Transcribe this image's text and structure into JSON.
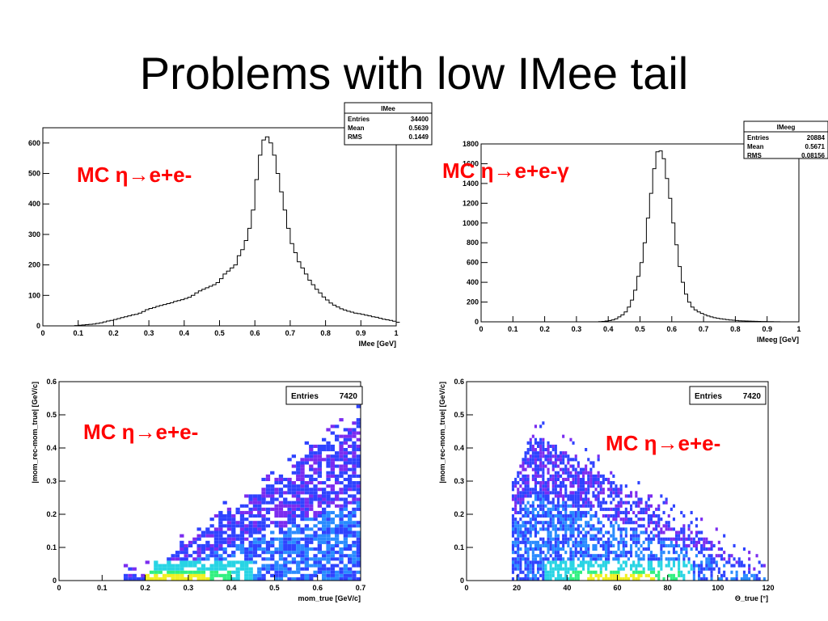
{
  "slide": {
    "title": "Problems with low IMee tail"
  },
  "colors": {
    "line": "#000000",
    "annotation": "#ff0000"
  },
  "chart_data": [
    {
      "id": "imee",
      "type": "histogram",
      "annotation": "MC η→e+e-",
      "xlabel": "IMee [GeV]",
      "ylabel": "",
      "xlim": [
        0,
        1
      ],
      "ylim": [
        0,
        650
      ],
      "xticks": [
        "0",
        "0.1",
        "0.2",
        "0.3",
        "0.4",
        "0.5",
        "0.6",
        "0.7",
        "0.8",
        "0.9",
        "1"
      ],
      "yticks": [
        "0",
        "100",
        "200",
        "300",
        "400",
        "500",
        "600"
      ],
      "stats": {
        "title": "IMee",
        "rows": [
          [
            "Entries",
            "34400"
          ],
          [
            "Mean",
            "0.5639"
          ],
          [
            "RMS",
            "0.1449"
          ]
        ]
      },
      "bin_width": 0.01,
      "values": [
        0,
        0,
        0,
        0,
        0,
        0,
        0,
        0,
        0,
        1,
        2,
        3,
        4,
        5,
        6,
        8,
        10,
        13,
        16,
        18,
        21,
        24,
        27,
        30,
        33,
        36,
        38,
        42,
        47,
        53,
        57,
        60,
        64,
        67,
        70,
        73,
        76,
        80,
        83,
        86,
        90,
        94,
        100,
        108,
        115,
        120,
        125,
        130,
        135,
        142,
        155,
        170,
        180,
        190,
        200,
        230,
        250,
        280,
        320,
        380,
        480,
        560,
        610,
        620,
        600,
        560,
        500,
        440,
        380,
        320,
        270,
        240,
        210,
        190,
        170,
        150,
        135,
        120,
        108,
        95,
        85,
        75,
        68,
        62,
        56,
        52,
        48,
        45,
        42,
        40,
        38,
        35,
        33,
        30,
        28,
        25,
        22,
        20,
        18,
        15,
        12
      ]
    },
    {
      "id": "imeeg",
      "type": "histogram",
      "annotation": "MC η→e+e-γ",
      "xlabel": "IMeeg [GeV]",
      "ylabel": "",
      "xlim": [
        0,
        1
      ],
      "ylim": [
        0,
        1800
      ],
      "xticks": [
        "0",
        "0.1",
        "0.2",
        "0.3",
        "0.4",
        "0.5",
        "0.6",
        "0.7",
        "0.8",
        "0.9",
        "1"
      ],
      "yticks": [
        "0",
        "200",
        "400",
        "600",
        "800",
        "1000",
        "1200",
        "1400",
        "1600",
        "1800"
      ],
      "stats": {
        "title": "IMeeg",
        "rows": [
          [
            "Entries",
            "20884"
          ],
          [
            "Mean",
            "0.5671"
          ],
          [
            "RMS",
            "0.08156"
          ]
        ]
      },
      "bin_width": 0.01,
      "values": [
        0,
        0,
        0,
        0,
        0,
        0,
        0,
        0,
        0,
        0,
        0,
        0,
        0,
        0,
        0,
        0,
        0,
        0,
        0,
        0,
        0,
        0,
        0,
        0,
        0,
        0,
        0,
        0,
        0,
        0,
        0,
        0,
        0,
        0,
        0,
        0,
        0,
        2,
        4,
        8,
        12,
        20,
        30,
        50,
        70,
        100,
        150,
        220,
        320,
        460,
        600,
        800,
        1050,
        1300,
        1550,
        1720,
        1730,
        1650,
        1450,
        1250,
        1000,
        780,
        560,
        400,
        280,
        200,
        150,
        120,
        100,
        85,
        72,
        60,
        50,
        42,
        36,
        30,
        26,
        22,
        19,
        16,
        13,
        11,
        9,
        8,
        7,
        6,
        5,
        4,
        3,
        3,
        2,
        2,
        1,
        1,
        0,
        0,
        0,
        0,
        0,
        0
      ]
    },
    {
      "id": "res-vs-mom",
      "type": "heatmap",
      "annotation": "MC η→e+e-",
      "xlabel": "mom_true [GeV/c]",
      "ylabel": "|mom_rec-mom_true| [GeV/c]",
      "xlim": [
        0,
        0.7
      ],
      "ylim": [
        0,
        0.6
      ],
      "xticks": [
        "0",
        "0.1",
        "0.2",
        "0.3",
        "0.4",
        "0.5",
        "0.6",
        "0.7"
      ],
      "yticks": [
        "0",
        "0.1",
        "0.2",
        "0.3",
        "0.4",
        "0.5",
        "0.6"
      ],
      "stats": {
        "title": "",
        "rows": [
          [
            "Entries",
            "7420"
          ]
        ]
      },
      "palette": [
        "#7b2cf0",
        "#2f43ff",
        "#2a8bff",
        "#28d4e4",
        "#30f080",
        "#f0f020"
      ]
    },
    {
      "id": "res-vs-theta",
      "type": "heatmap",
      "annotation": "MC η→e+e-",
      "xlabel": "Θ_true [°]",
      "ylabel": "|mom_rec-mom_true| [GeV/c]",
      "xlim": [
        0,
        120
      ],
      "ylim": [
        0,
        0.6
      ],
      "xticks": [
        "0",
        "20",
        "40",
        "60",
        "80",
        "100",
        "120"
      ],
      "yticks": [
        "0",
        "0.1",
        "0.2",
        "0.3",
        "0.4",
        "0.5",
        "0.6"
      ],
      "stats": {
        "title": "",
        "rows": [
          [
            "Entries",
            "7420"
          ]
        ]
      },
      "palette": [
        "#7b2cf0",
        "#2f43ff",
        "#2a8bff",
        "#28d4e4",
        "#30f080",
        "#f0f020"
      ]
    }
  ]
}
